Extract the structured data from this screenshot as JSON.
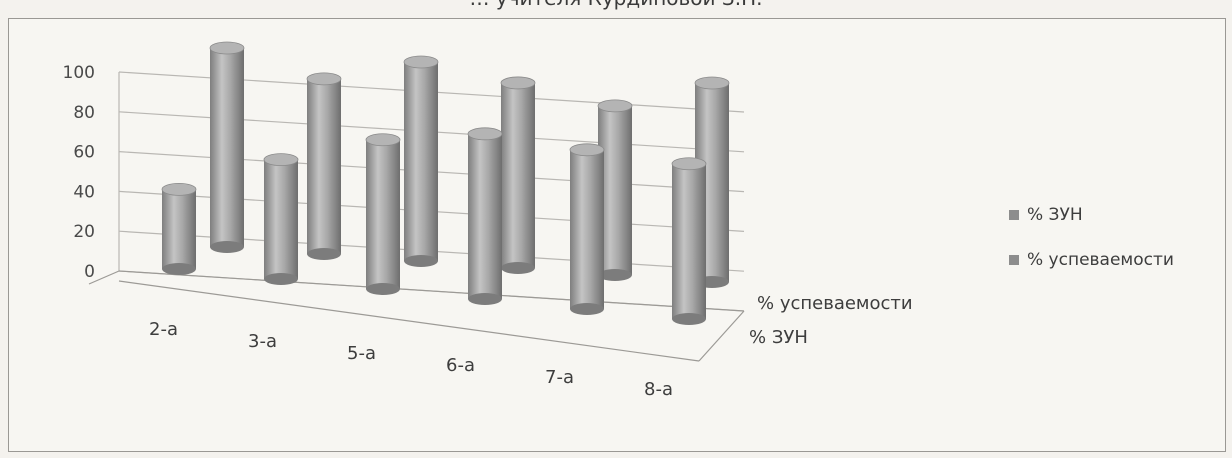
{
  "title": "… учителя Курдиновой З.Н.",
  "chart_data": {
    "type": "bar",
    "style": "3d-cylinder",
    "categories": [
      "2-a",
      "3-a",
      "5-a",
      "6-a",
      "7-a",
      "8-a"
    ],
    "series": [
      {
        "name": "% ЗУН",
        "values": [
          40,
          60,
          75,
          83,
          80,
          78
        ],
        "color": "#9d9d9d"
      },
      {
        "name": "% успеваемости",
        "values": [
          100,
          88,
          100,
          93,
          85,
          100
        ],
        "color": "#a2a2a2"
      }
    ],
    "ylim": [
      0,
      100
    ],
    "yticks": [
      0,
      20,
      40,
      60,
      80,
      100
    ],
    "depth_labels": [
      "% ЗУН",
      "% успеваемости"
    ],
    "grid": true,
    "legend_position": "right"
  }
}
